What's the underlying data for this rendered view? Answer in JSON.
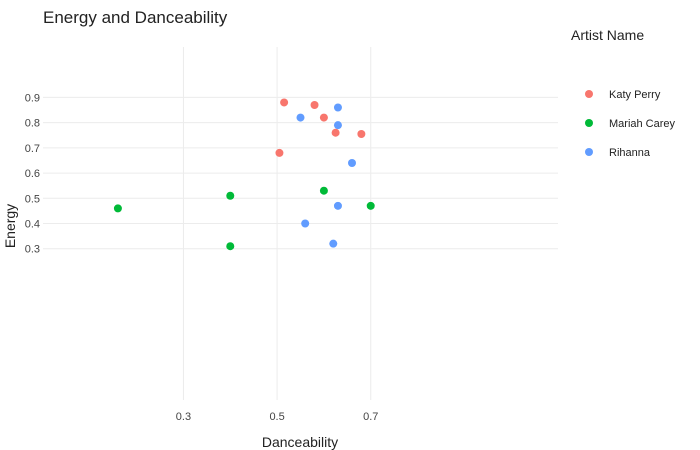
{
  "chart_data": {
    "type": "scatter",
    "title": "Energy and Danceability",
    "xlabel": "Danceability",
    "ylabel": "Energy",
    "xlim": [
      0.0,
      1.1
    ],
    "ylim": [
      -0.3,
      1.1
    ],
    "xticks": [
      0.3,
      0.5,
      0.7
    ],
    "yticks": [
      0.3,
      0.4,
      0.5,
      0.6,
      0.7,
      0.8,
      0.9
    ],
    "grid": true,
    "legend_title": "Artist Name",
    "legend_position": "right",
    "series": [
      {
        "name": "Katy Perry",
        "color": "#F8766D",
        "points": [
          {
            "x": 0.515,
            "y": 0.88
          },
          {
            "x": 0.58,
            "y": 0.87
          },
          {
            "x": 0.6,
            "y": 0.82
          },
          {
            "x": 0.625,
            "y": 0.76
          },
          {
            "x": 0.68,
            "y": 0.755
          },
          {
            "x": 0.505,
            "y": 0.68
          }
        ]
      },
      {
        "name": "Mariah Carey",
        "color": "#00BA38",
        "points": [
          {
            "x": 0.16,
            "y": 0.46
          },
          {
            "x": 0.4,
            "y": 0.51
          },
          {
            "x": 0.4,
            "y": 0.31
          },
          {
            "x": 0.6,
            "y": 0.53
          },
          {
            "x": 0.7,
            "y": 0.47
          }
        ]
      },
      {
        "name": "Rihanna",
        "color": "#619CFF",
        "points": [
          {
            "x": 0.55,
            "y": 0.82
          },
          {
            "x": 0.63,
            "y": 0.86
          },
          {
            "x": 0.63,
            "y": 0.79
          },
          {
            "x": 0.66,
            "y": 0.64
          },
          {
            "x": 0.63,
            "y": 0.47
          },
          {
            "x": 0.56,
            "y": 0.4
          },
          {
            "x": 0.62,
            "y": 0.32
          }
        ]
      }
    ]
  }
}
